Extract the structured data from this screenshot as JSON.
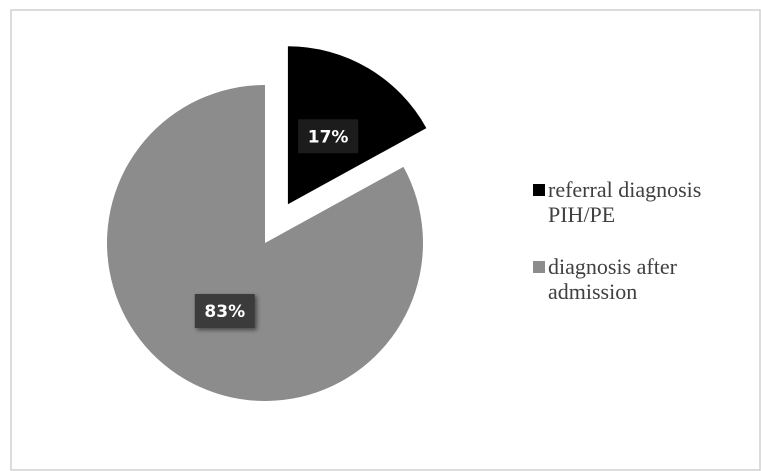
{
  "chart_data": {
    "type": "pie",
    "categories": [
      "referral diagnosis PIH/PE",
      "diagnosis after admission"
    ],
    "values": [
      17,
      83
    ],
    "value_labels": [
      "17%",
      "83%"
    ],
    "colors": [
      "#000000",
      "#8c8c8c"
    ]
  }
}
